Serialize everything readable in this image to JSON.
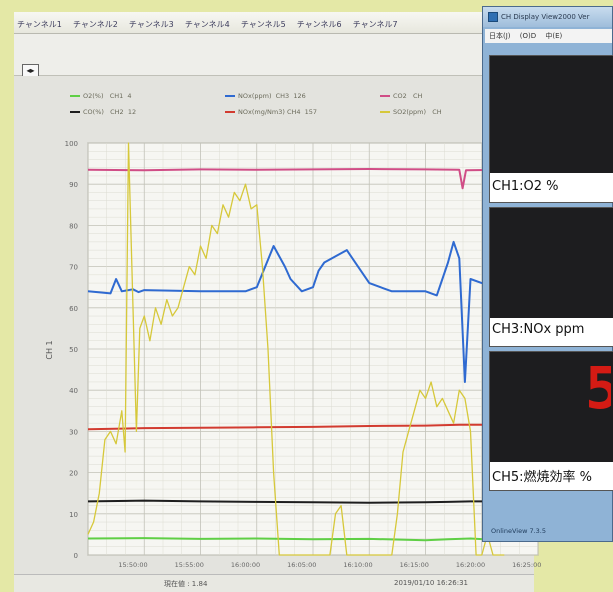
{
  "trend": {
    "tabs": [
      "チャンネル1",
      "チャンネル2",
      "チャンネル3",
      "チャンネル4",
      "チャンネル5",
      "チャンネル6",
      "チャンネル7"
    ],
    "nav_button": "◂▸",
    "legend": [
      {
        "swatch": "#5fcf45",
        "name": "O2(%)",
        "ch": "CH1",
        "val": "4"
      },
      {
        "swatch": "#2f6ad1",
        "name": "NOx(ppm)",
        "ch": "CH3",
        "val": "126"
      },
      {
        "swatch": "#d04d86",
        "name": "CO2",
        "ch": "CH",
        "val": ""
      },
      {
        "swatch": "#1e1e1e",
        "name": "CO(%)",
        "ch": "CH2",
        "val": "12"
      },
      {
        "swatch": "#d23b30",
        "name": "NOx(mg/Nm3)",
        "ch": "CH4",
        "val": "157"
      },
      {
        "swatch": "#d6c83a",
        "name": "SO2(ppm)",
        "ch": "CH",
        "val": ""
      }
    ],
    "status_left": "現在値 : 1.84",
    "status_right": "2019/01/10 16:26:31"
  },
  "chart_data": {
    "type": "line",
    "y_axis_label": "CH 1",
    "ylim": [
      0,
      100
    ],
    "y_ticks": [
      "100",
      "90",
      "80",
      "70",
      "60",
      "50",
      "40",
      "30",
      "20",
      "10",
      "0"
    ],
    "x_ticks": [
      "15:50:00",
      "15:55:00",
      "16:00:00",
      "16:05:00",
      "16:10:00",
      "16:15:00",
      "16:20:00",
      "16:25:00"
    ],
    "grid": true,
    "series": [
      {
        "name": "O2(%)",
        "color": "#5fcf45",
        "x": [
          0,
          5,
          10,
          15,
          20,
          25,
          30,
          32,
          34,
          36,
          37
        ],
        "y": [
          4,
          4.1,
          3.9,
          4,
          3.8,
          3.9,
          3.6,
          3.8,
          4,
          3.7,
          3.8
        ]
      },
      {
        "name": "CO(%)",
        "color": "#1e1e1e",
        "x": [
          0,
          5,
          10,
          15,
          20,
          25,
          30,
          32,
          34,
          37
        ],
        "y": [
          13,
          13.2,
          13,
          12.9,
          12.8,
          12.7,
          12.8,
          12.9,
          13,
          13
        ]
      },
      {
        "name": "NOx(mg/Nm3)",
        "color": "#d23b30",
        "x": [
          0,
          5,
          10,
          15,
          20,
          25,
          30,
          33,
          37
        ],
        "y": [
          30.5,
          30.8,
          30.9,
          31,
          31.1,
          31.3,
          31.4,
          31.6,
          31.6
        ]
      },
      {
        "name": "CO2",
        "color": "#d04d86",
        "x": [
          0,
          5,
          10,
          15,
          20,
          25,
          30,
          33,
          33.3,
          33.6,
          37
        ],
        "y": [
          93.5,
          93.4,
          93.6,
          93.5,
          93.6,
          93.7,
          93.6,
          93.5,
          89,
          93.4,
          93.5
        ]
      },
      {
        "name": "NOx(ppm)",
        "color": "#2f6ad1",
        "x": [
          0,
          2,
          2.5,
          3,
          4,
          4.5,
          5,
          10,
          14,
          15,
          16.5,
          17.5,
          18,
          19,
          20,
          20.5,
          21,
          23,
          24,
          25,
          26,
          27,
          28,
          30,
          31,
          32,
          32.5,
          33,
          33.5,
          34,
          35,
          36,
          37
        ],
        "y": [
          64,
          63.5,
          67,
          64,
          64.5,
          63.8,
          64.3,
          64,
          64,
          65,
          75,
          70,
          67,
          64,
          65,
          69,
          71,
          74,
          70,
          66,
          65,
          64,
          64,
          64,
          63,
          71,
          76,
          72,
          42,
          67,
          66,
          65,
          64
        ]
      },
      {
        "name": "SO2(ppm)",
        "color": "#d6c83a",
        "x": [
          0,
          0.5,
          1,
          1.5,
          2,
          2.5,
          3,
          3.3,
          3.6,
          4,
          4.3,
          4.6,
          5,
          5.5,
          6,
          6.5,
          7,
          7.5,
          8,
          8.5,
          9,
          9.5,
          10,
          10.5,
          11,
          11.5,
          12,
          12.5,
          13,
          13.5,
          14,
          14.5,
          15,
          15.5,
          16,
          16.5,
          17,
          17.5,
          18,
          18.5,
          19,
          19.5,
          20,
          20.5,
          21,
          21.5,
          22,
          22.5,
          23,
          23.5,
          24,
          24.5,
          25,
          25.5,
          26,
          26.5,
          27,
          27.5,
          28,
          28.5,
          29,
          29.5,
          30,
          30.5,
          31,
          31.5,
          32,
          32.5,
          33,
          33.5,
          34,
          34.5,
          35,
          35.5,
          36,
          36.5,
          37
        ],
        "y": [
          5,
          8,
          15,
          28,
          30,
          27,
          35,
          25,
          100,
          60,
          30,
          55,
          58,
          52,
          60,
          56,
          62,
          58,
          60,
          65,
          70,
          68,
          75,
          72,
          80,
          78,
          85,
          82,
          88,
          86,
          90,
          84,
          85,
          70,
          50,
          20,
          0,
          0,
          0,
          0,
          0,
          0,
          0,
          0,
          0,
          0,
          10,
          12,
          0,
          0,
          0,
          0,
          0,
          0,
          0,
          0,
          0,
          10,
          25,
          30,
          35,
          40,
          38,
          42,
          36,
          38,
          35,
          32,
          40,
          38,
          30,
          0,
          0,
          5,
          0,
          0,
          0
        ]
      }
    ]
  },
  "viewer": {
    "title": "CH Display View2000 Ver",
    "menu": [
      "日本(J)",
      "(O)D",
      "中(E)"
    ],
    "channels": [
      {
        "label": "CH1:O2 %"
      },
      {
        "label": "CH3:NOx ppm"
      },
      {
        "label": "CH5:燃焼効率 %",
        "digit": "5"
      }
    ],
    "version": "OnlineView 7.3.5"
  }
}
